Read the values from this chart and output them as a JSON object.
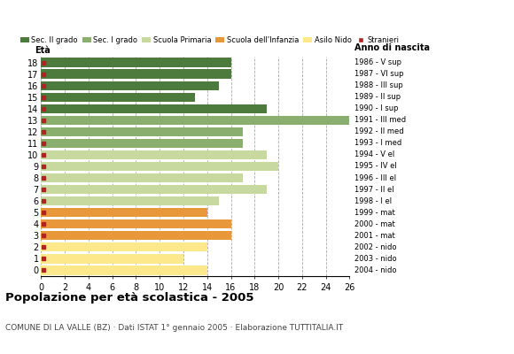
{
  "ages": [
    0,
    1,
    2,
    3,
    4,
    5,
    6,
    7,
    8,
    9,
    10,
    11,
    12,
    13,
    14,
    15,
    16,
    17,
    18
  ],
  "values": [
    14,
    12,
    14,
    16,
    16,
    14,
    15,
    19,
    17,
    20,
    19,
    17,
    17,
    26,
    19,
    13,
    15,
    16,
    16
  ],
  "bar_colors": [
    "#fde88c",
    "#fde88c",
    "#fde88c",
    "#e8973a",
    "#e8973a",
    "#e8973a",
    "#c8d9a0",
    "#c8d9a0",
    "#c8d9a0",
    "#c8d9a0",
    "#c8d9a0",
    "#8aae6e",
    "#8aae6e",
    "#8aae6e",
    "#4d7a3d",
    "#4d7a3d",
    "#4d7a3d",
    "#4d7a3d",
    "#4d7a3d"
  ],
  "stranieri_color": "#b22222",
  "anno_labels": [
    "2004 - nido",
    "2003 - nido",
    "2002 - nido",
    "2001 - mat",
    "2000 - mat",
    "1999 - mat",
    "1998 - I el",
    "1997 - II el",
    "1996 - III el",
    "1995 - IV el",
    "1994 - V el",
    "1993 - I med",
    "1992 - II med",
    "1991 - III med",
    "1990 - I sup",
    "1989 - II sup",
    "1988 - III sup",
    "1987 - VI sup",
    "1986 - V sup"
  ],
  "xlim": [
    0,
    26
  ],
  "xticks": [
    0,
    2,
    4,
    6,
    8,
    10,
    12,
    14,
    16,
    18,
    20,
    22,
    24,
    26
  ],
  "legend_labels": [
    "Sec. II grado",
    "Sec. I grado",
    "Scuola Primaria",
    "Scuola dell'Infanzia",
    "Asilo Nido",
    "Stranieri"
  ],
  "legend_colors": [
    "#4d7a3d",
    "#8aae6e",
    "#c8d9a0",
    "#e8973a",
    "#fde88c",
    "#b22222"
  ],
  "title": "Popolazione per età scolastica - 2005",
  "subtitle": "COMUNE DI LA VALLE (BZ) · Dati ISTAT 1° gennaio 2005 · Elaborazione TUTTITALIA.IT",
  "eta_label": "Età",
  "anno_label": "Anno di nascita",
  "plot_bg_color": "#ffffff",
  "fig_bg_color": "#ffffff",
  "grid_color": "#aaaaaa"
}
